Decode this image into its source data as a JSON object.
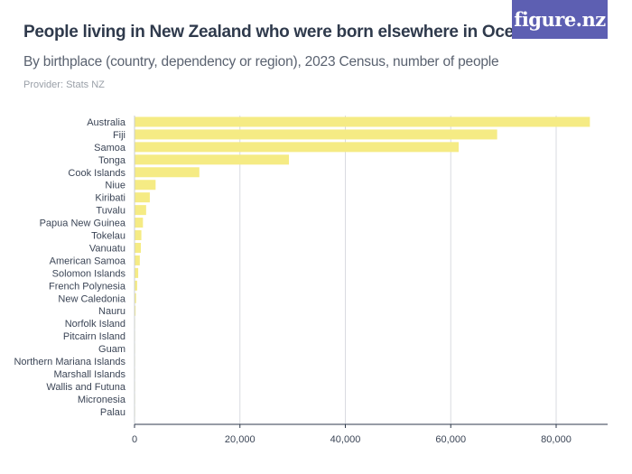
{
  "header": {
    "title": "People living in New Zealand who were born elsewhere in Oceania",
    "subtitle": "By birthplace (country, dependency or region), 2023 Census, number of people",
    "provider": "Provider: Stats NZ"
  },
  "logo": {
    "text": "figure.nz",
    "bg_color": "#5d5fb2"
  },
  "chart_data": {
    "type": "bar",
    "orientation": "horizontal",
    "categories": [
      "Australia",
      "Fiji",
      "Samoa",
      "Tonga",
      "Cook Islands",
      "Niue",
      "Kiribati",
      "Tuvalu",
      "Papua New Guinea",
      "Tokelau",
      "Vanuatu",
      "American Samoa",
      "Solomon Islands",
      "French Polynesia",
      "New Caledonia",
      "Nauru",
      "Norfolk Island",
      "Pitcairn Island",
      "Guam",
      "Northern Mariana Islands",
      "Marshall Islands",
      "Wallis and Futuna",
      "Micronesia",
      "Palau"
    ],
    "values": [
      86400,
      68800,
      61500,
      29300,
      12300,
      4000,
      2900,
      2200,
      1600,
      1300,
      1200,
      1000,
      700,
      500,
      300,
      200,
      100,
      60,
      40,
      30,
      30,
      30,
      20,
      10
    ],
    "xlim": [
      0,
      90000
    ],
    "xticks": [
      0,
      20000,
      40000,
      60000,
      80000
    ],
    "xtick_labels": [
      "0",
      "20,000",
      "40,000",
      "60,000",
      "80,000"
    ],
    "bar_color": "#f5eb84",
    "grid": true
  }
}
